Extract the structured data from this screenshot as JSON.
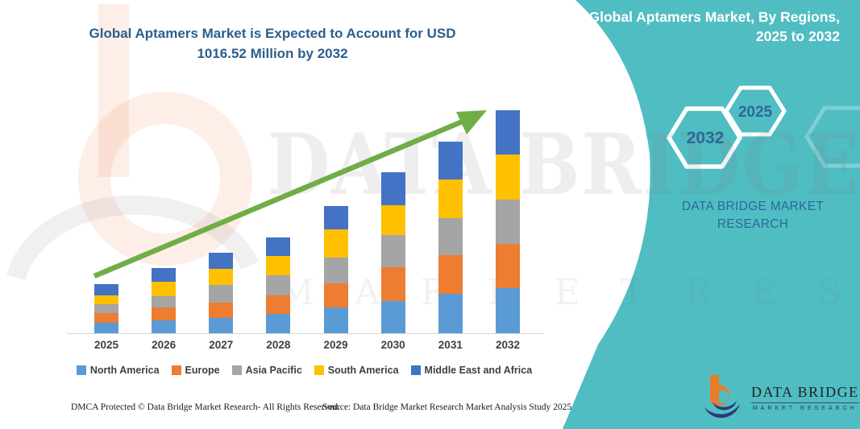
{
  "header": {
    "title": "Global Aptamers Market is Expected to Account for USD 1016.52 Million by 2032"
  },
  "side_panel": {
    "title": "Global Aptamers Market, By Regions, 2025 to 2032",
    "hexagon_back_year": "2032",
    "hexagon_front_year": "2025",
    "brand_text": "DATA BRIDGE MARKET RESEARCH",
    "panel_color": "#50BDC3",
    "hexagon_text_color": "#2D6898"
  },
  "watermark": {
    "line1": "DATA BRIDGE",
    "line2": "M A R K E T   R E S E A R C H"
  },
  "logo": {
    "name": "DATA BRIDGE",
    "subtitle": "MARKET RESEARCH"
  },
  "footer": {
    "left": "DMCA Protected © Data Bridge Market Research-  All Rights Reserved.",
    "right": "Source: Data Bridge Market Research  Market Analysis Study 2025"
  },
  "chart_data": {
    "type": "bar",
    "stacked": true,
    "title": "Global Aptamers Market, By Regions, 2025 to 2032",
    "unit": "USD Million",
    "value_axis_visible": false,
    "legend_position": "bottom",
    "grid": false,
    "categories": [
      "2025",
      "2026",
      "2027",
      "2028",
      "2029",
      "2030",
      "2031",
      "2032"
    ],
    "series": [
      {
        "name": "North America",
        "color": "#5B9BD5",
        "values": [
          48,
          59,
          71,
          89,
          116,
          147,
          181,
          205
        ]
      },
      {
        "name": "Europe",
        "color": "#ED7D31",
        "values": [
          44,
          59,
          70,
          82,
          113,
          154,
          174,
          202
        ]
      },
      {
        "name": "Asia Pacific",
        "color": "#A5A5A5",
        "values": [
          39,
          51,
          81,
          92,
          117,
          147,
          171,
          204
        ]
      },
      {
        "name": "South America",
        "color": "#FFC000",
        "values": [
          43,
          65,
          73,
          88,
          127,
          135,
          175,
          205
        ]
      },
      {
        "name": "Middle East and Africa",
        "color": "#4472C4",
        "values": [
          49,
          63,
          73,
          86,
          108,
          149,
          174,
          200.52
        ]
      }
    ],
    "totals": [
      223,
      297,
      368,
      437,
      581,
      732,
      875,
      1016.52
    ],
    "highlight_total_2032": 1016.52,
    "trend_arrow_color": "#6FAE46"
  }
}
